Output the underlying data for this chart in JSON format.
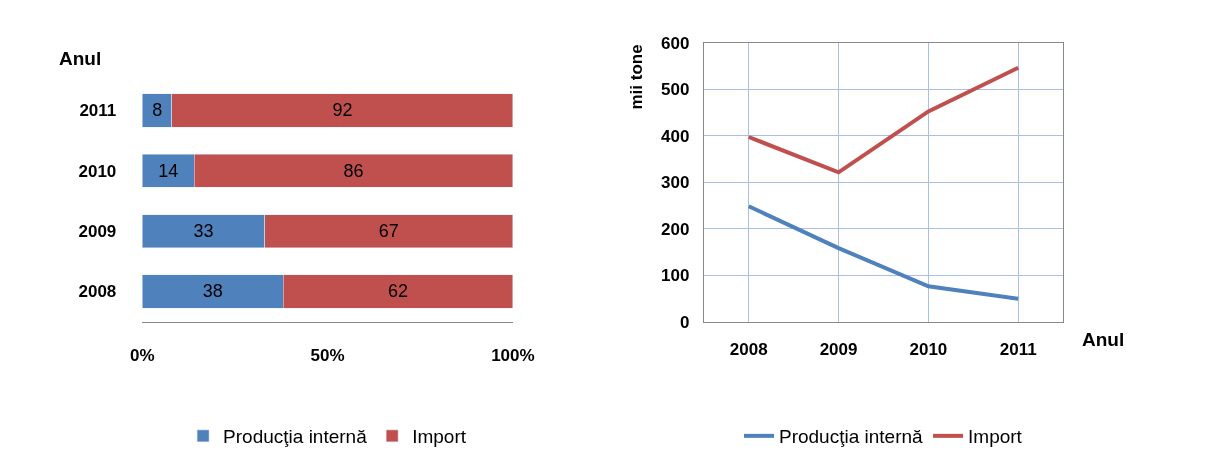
{
  "chart_data": [
    {
      "type": "bar",
      "orientation": "horizontal",
      "stacked": true,
      "ylabel": "Anul",
      "categories": [
        "2011",
        "2010",
        "2009",
        "2008"
      ],
      "series": [
        {
          "name": "Producţia internă",
          "color": "#4f81bd",
          "values": [
            8,
            14,
            33,
            38
          ]
        },
        {
          "name": "Import",
          "color": "#c0504d",
          "values": [
            92,
            86,
            67,
            62
          ]
        }
      ],
      "xlim": [
        0,
        100
      ],
      "xticks": [
        {
          "value": 0,
          "label": "0%"
        },
        {
          "value": 50,
          "label": "50%"
        },
        {
          "value": 100,
          "label": "100%"
        }
      ],
      "data_labels": true,
      "grid": false,
      "legend": "bottom"
    },
    {
      "type": "line",
      "xlabel": "Anul",
      "ylabel": "mii tone",
      "categories": [
        "2008",
        "2009",
        "2010",
        "2011"
      ],
      "series": [
        {
          "name": "Producţia internă",
          "color": "#4f81bd",
          "values": [
            248,
            158,
            76,
            49
          ]
        },
        {
          "name": "Import",
          "color": "#c0504d",
          "values": [
            397,
            321,
            452,
            546
          ]
        }
      ],
      "ylim": [
        0,
        600
      ],
      "yticks": [
        0,
        100,
        200,
        300,
        400,
        500,
        600
      ],
      "grid": true,
      "legend": "bottom",
      "marker": "none",
      "line_style": "solid"
    }
  ]
}
